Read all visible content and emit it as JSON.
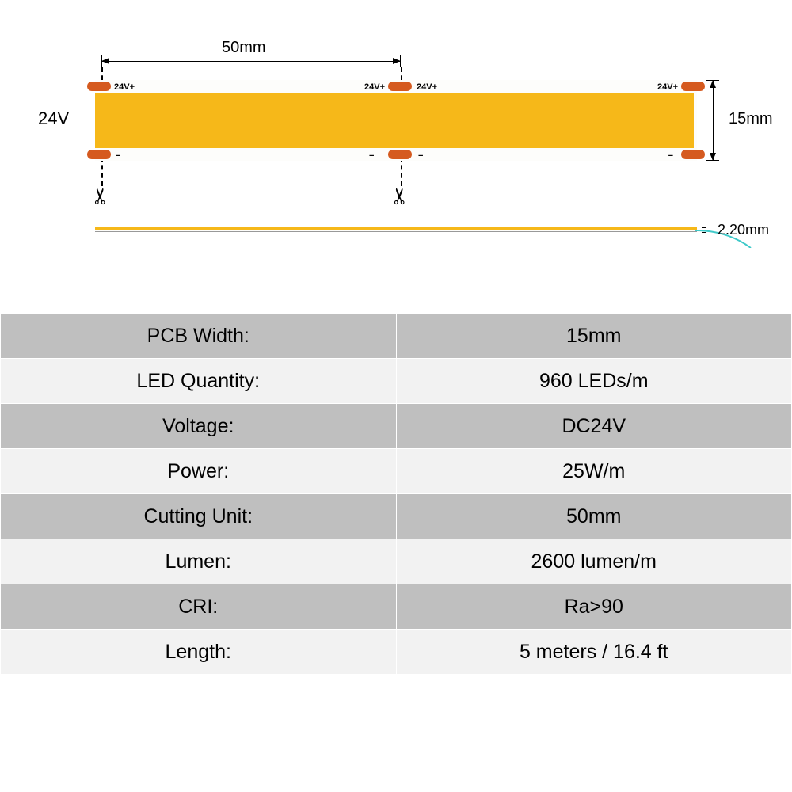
{
  "diagram": {
    "top_dimension": "50mm",
    "voltage_label": "24V",
    "width_label": "15mm",
    "thickness_label": "2.20mm",
    "pad_pos_label": "24V+",
    "pad_neg_label": "−",
    "strip_cob_color": "#f6b819",
    "strip_bg_color": "#fdfdfb",
    "pad_color": "#d55a1f"
  },
  "specs": [
    {
      "label": "PCB Width:",
      "value": "15mm"
    },
    {
      "label": "LED Quantity:",
      "value": "960 LEDs/m"
    },
    {
      "label": "Voltage:",
      "value": "DC24V"
    },
    {
      "label": "Power:",
      "value": "25W/m"
    },
    {
      "label": "Cutting Unit:",
      "value": "50mm"
    },
    {
      "label": "Lumen:",
      "value": "2600 lumen/m"
    },
    {
      "label": "CRI:",
      "value": "Ra>90"
    },
    {
      "label": "Length:",
      "value": "5 meters / 16.4 ft"
    }
  ],
  "table_colors": {
    "dark": "#bfbfbf",
    "light": "#f2f2f2",
    "text": "#000000"
  }
}
